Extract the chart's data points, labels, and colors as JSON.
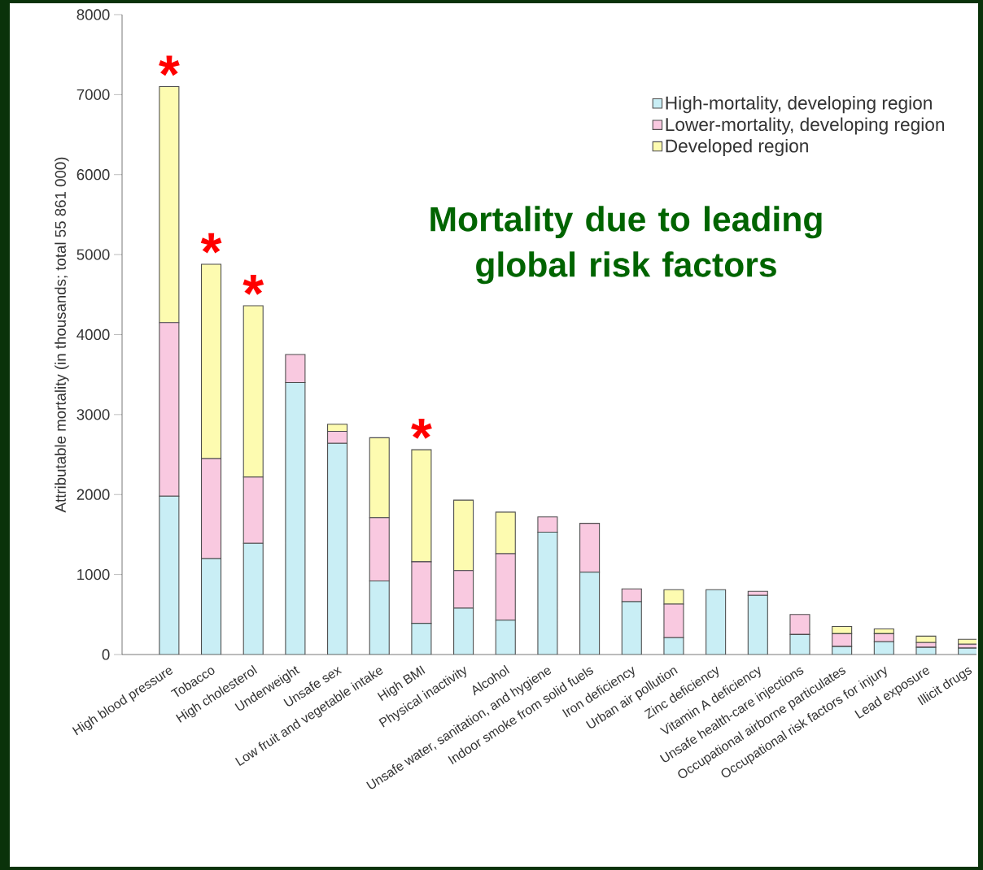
{
  "chart_data": {
    "type": "bar",
    "stacked": true,
    "title": "Mortality due to leading global risk factors",
    "ylabel": "Attributable mortality (in thousands; total 55 861 000)",
    "categories": [
      "High blood pressure",
      "Tobacco",
      "High cholesterol",
      "Underweight",
      "Unsafe sex",
      "Low fruit and vegetable intake",
      "High BMI",
      "Physical inactivity",
      "Alcohol",
      "Unsafe water, sanitation, and hygiene",
      "Indoor smoke from solid fuels",
      "Iron deficiency",
      "Urban air pollution",
      "Zinc deficiency",
      "Vitamin A deficiency",
      "Unsafe health-care injections",
      "Occupational airborne particulates",
      "Occupational risk factors for injury",
      "Lead exposure",
      "Illicit drugs"
    ],
    "series": [
      {
        "name": "High-mortality, developing region",
        "color": "#c9eef5",
        "values": [
          1980,
          1200,
          1390,
          3400,
          2640,
          920,
          390,
          580,
          430,
          1530,
          1030,
          660,
          210,
          810,
          740,
          250,
          100,
          160,
          90,
          80
        ]
      },
      {
        "name": "Lower-mortality, developing region",
        "color": "#f9c9e0",
        "values": [
          2170,
          1250,
          830,
          350,
          150,
          790,
          770,
          470,
          830,
          190,
          610,
          160,
          420,
          0,
          50,
          250,
          160,
          100,
          60,
          50
        ]
      },
      {
        "name": "Developed region",
        "color": "#fdfbb0",
        "values": [
          2950,
          2430,
          2140,
          0,
          90,
          1000,
          1400,
          880,
          520,
          0,
          0,
          0,
          180,
          0,
          0,
          0,
          90,
          60,
          80,
          60
        ]
      }
    ],
    "ylim": [
      0,
      8000
    ],
    "yticks": [
      0,
      1000,
      2000,
      3000,
      4000,
      5000,
      6000,
      7000,
      8000
    ],
    "legend": "top right",
    "annotations": [
      {
        "text": "*",
        "x": "High blood pressure",
        "y": 7100
      },
      {
        "text": "*",
        "x": "Tobacco",
        "y": 4880
      },
      {
        "text": "*",
        "x": "High cholesterol",
        "y": 4360
      },
      {
        "text": "*",
        "x": "High BMI",
        "y": 2560
      }
    ]
  }
}
